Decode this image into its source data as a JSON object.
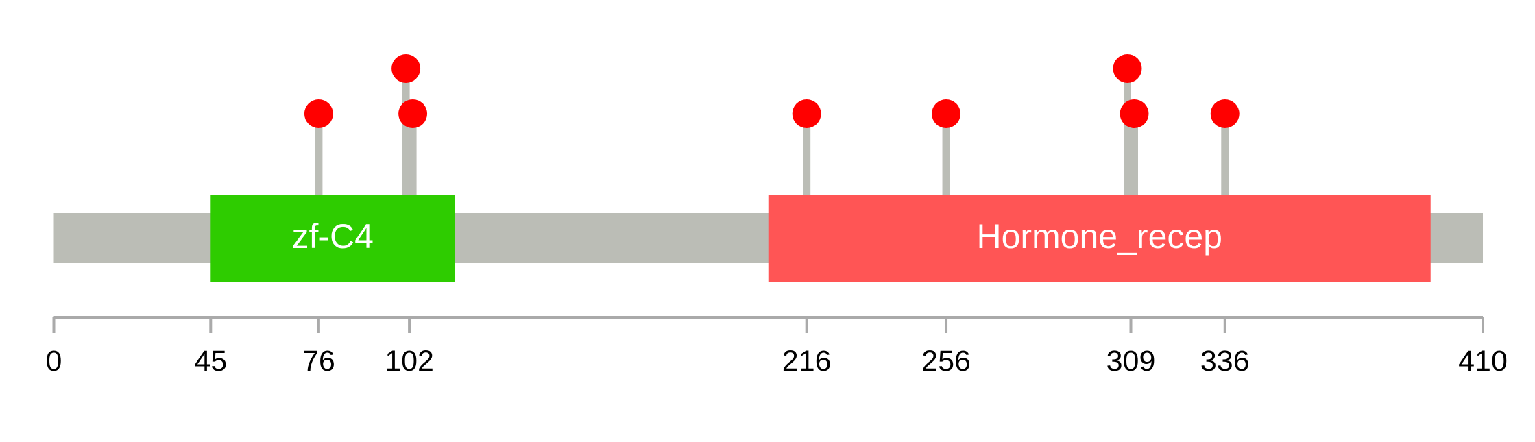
{
  "chart_data": {
    "type": "lollipop",
    "protein_length": 410,
    "xlim": [
      0,
      410
    ],
    "colors": {
      "backbone": "#bbbdb6",
      "stem": "#bbbdb6",
      "head": "#ff0000",
      "axis": "#aaaaaa",
      "domain_label": "#ffffff",
      "tick_label": "#000000"
    },
    "domains": [
      {
        "name": "zf-C4",
        "start": 45,
        "end": 115,
        "color": "#2ecc00"
      },
      {
        "name": "Hormone_recep",
        "start": 205,
        "end": 395,
        "color": "#ff5555"
      }
    ],
    "mutations": [
      {
        "position": 76,
        "count": 1
      },
      {
        "position": 102,
        "count": 2
      },
      {
        "position": 216,
        "count": 1
      },
      {
        "position": 256,
        "count": 1
      },
      {
        "position": 309,
        "count": 2
      },
      {
        "position": 336,
        "count": 1
      }
    ],
    "ticks": [
      {
        "value": 0,
        "label": "0"
      },
      {
        "value": 45,
        "label": "45"
      },
      {
        "value": 76,
        "label": "76"
      },
      {
        "value": 102,
        "label": "102"
      },
      {
        "value": 216,
        "label": "216"
      },
      {
        "value": 256,
        "label": "256"
      },
      {
        "value": 309,
        "label": "309"
      },
      {
        "value": 336,
        "label": "336"
      },
      {
        "value": 410,
        "label": "410"
      }
    ]
  }
}
